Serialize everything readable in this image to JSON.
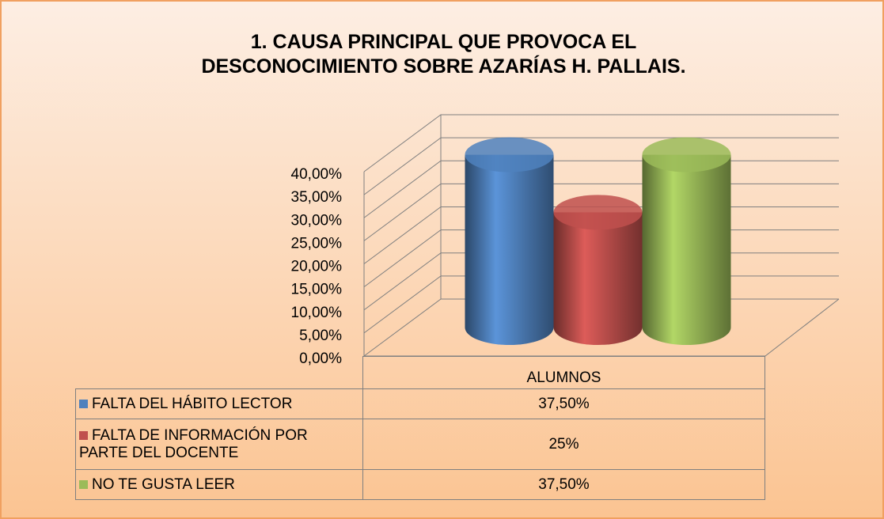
{
  "chart_data": {
    "type": "bar3d",
    "title": "1. CAUSA PRINCIPAL QUE PROVOCA EL DESCONOCIMIENTO SOBRE AZARÍAS H. PALLAIS.",
    "categories": [
      "ALUMNOS"
    ],
    "series": [
      {
        "name": "FALTA DEL HÁBITO LECTOR",
        "color": "#4f81bd",
        "values": [
          37.5
        ],
        "value_labels": [
          "37,50%"
        ]
      },
      {
        "name": "FALTA DE INFORMACIÓN POR PARTE DEL DOCENTE",
        "color": "#c0504d",
        "values": [
          25
        ],
        "value_labels": [
          "25%"
        ]
      },
      {
        "name": "NO TE GUSTA LEER",
        "color": "#9bbb59",
        "values": [
          37.5
        ],
        "value_labels": [
          "37,50%"
        ]
      }
    ],
    "ylim": [
      0,
      40
    ],
    "yticks": [
      {
        "value": 0,
        "label": "0,00%"
      },
      {
        "value": 5,
        "label": "5,00%"
      },
      {
        "value": 10,
        "label": "10,00%"
      },
      {
        "value": 15,
        "label": "15,00%"
      },
      {
        "value": 20,
        "label": "20,00%"
      },
      {
        "value": 25,
        "label": "25,00%"
      },
      {
        "value": 30,
        "label": "30,00%"
      },
      {
        "value": 35,
        "label": "35,00%"
      },
      {
        "value": 40,
        "label": "40,00%"
      }
    ],
    "grid": true
  }
}
